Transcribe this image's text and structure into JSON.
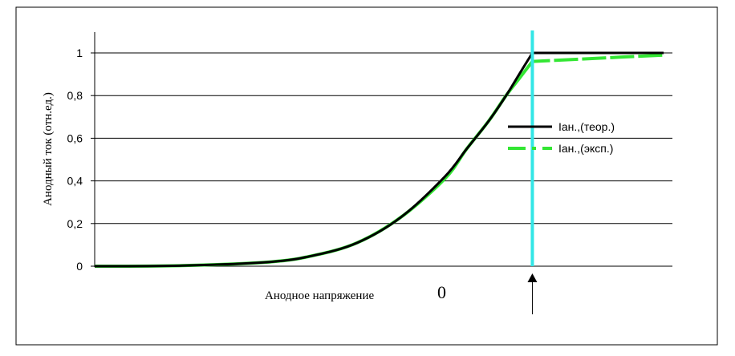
{
  "chart_data": {
    "type": "line",
    "xlabel": "Анодное напряжение",
    "ylabel": "Анодный ток (отн.ед.)",
    "ylim": [
      0,
      1
    ],
    "xlim": [
      -1,
      0.32
    ],
    "y_ticks": [
      "0",
      "0,2",
      "0,4",
      "0,6",
      "0,8",
      "1"
    ],
    "y_tick_values": [
      0,
      0.2,
      0.4,
      0.6,
      0.8,
      1
    ],
    "grid": true,
    "legend_position": "right",
    "x_marker": {
      "value": 0,
      "label": "0",
      "color": "#33e6e6"
    },
    "series": [
      {
        "name": "Iан.,(теор.)",
        "color": "#000000",
        "style": "solid",
        "x": [
          -1,
          -0.8,
          -0.6,
          -0.5,
          -0.4,
          -0.3,
          -0.2,
          -0.15,
          -0.1,
          -0.06,
          -0.03,
          0,
          0.1,
          0.2,
          0.3
        ],
        "y": [
          0,
          0.003,
          0.02,
          0.05,
          0.11,
          0.23,
          0.42,
          0.55,
          0.68,
          0.8,
          0.9,
          1.0,
          1.0,
          1.0,
          1.0
        ]
      },
      {
        "name": "Iан.,(эксп.)",
        "color": "#33e633",
        "style": "dashed",
        "x": [
          -1,
          -0.8,
          -0.6,
          -0.5,
          -0.4,
          -0.3,
          -0.2,
          -0.15,
          -0.1,
          -0.06,
          -0.03,
          0,
          0.1,
          0.2,
          0.3
        ],
        "y": [
          0,
          0.003,
          0.02,
          0.05,
          0.11,
          0.23,
          0.41,
          0.55,
          0.68,
          0.8,
          0.88,
          0.96,
          0.97,
          0.98,
          0.99
        ]
      }
    ]
  }
}
